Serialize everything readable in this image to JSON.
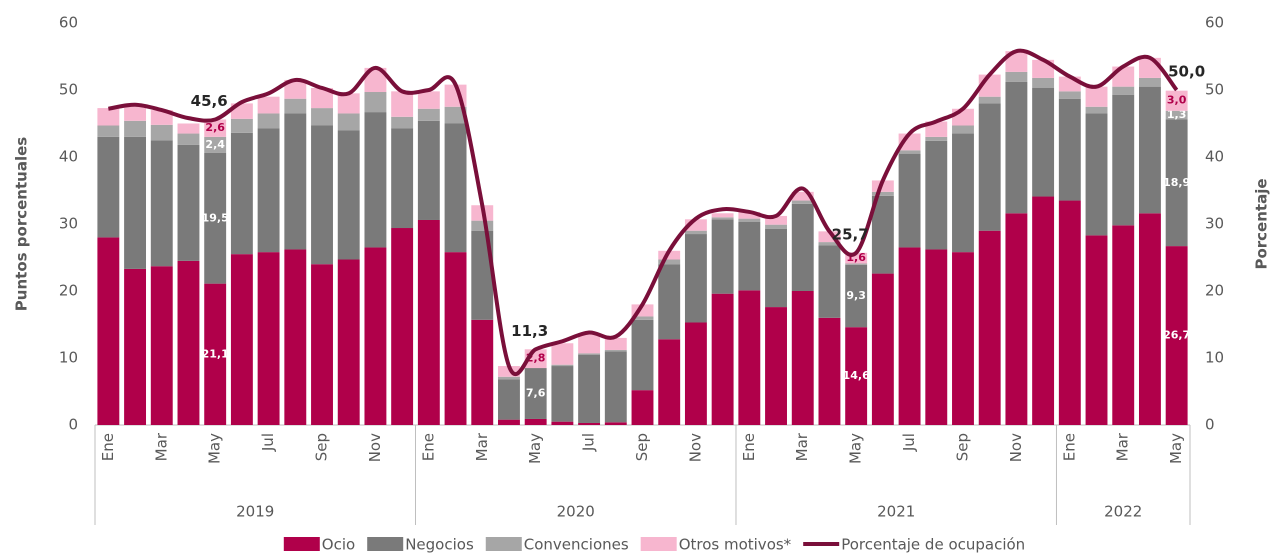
{
  "chart_data": {
    "type": "bar",
    "stacked": true,
    "ylabel": "Puntos porcentuales",
    "y2label": "Porcentaje",
    "ylim": [
      0,
      60
    ],
    "yticks": [
      0,
      10,
      20,
      30,
      40,
      50,
      60
    ],
    "y2lim": [
      0,
      60
    ],
    "y2ticks": [
      0,
      10,
      20,
      30,
      40,
      50,
      60
    ],
    "categories": [
      "Ene",
      null,
      "Mar",
      null,
      "May",
      null,
      "Jul",
      null,
      "Sep",
      null,
      "Nov",
      null,
      "Ene",
      null,
      "Mar",
      null,
      "May",
      null,
      "Jul",
      null,
      "Sep",
      null,
      "Nov",
      null,
      "Ene",
      null,
      "Mar",
      null,
      "May",
      null,
      "Jul",
      null,
      "Sep",
      null,
      "Nov",
      null,
      "Ene",
      null,
      "Mar",
      null,
      "May"
    ],
    "groups": [
      {
        "name": "2019",
        "count": 12
      },
      {
        "name": "2020",
        "count": 12
      },
      {
        "name": "2021",
        "count": 12
      },
      {
        "name": "2022",
        "count": 5
      }
    ],
    "series": [
      {
        "name": "Ocio",
        "type": "bar",
        "color": "#b0004a",
        "values": [
          28,
          23.3,
          23.7,
          24.5,
          21.1,
          25.5,
          25.8,
          26.2,
          24,
          24.7,
          26.5,
          29.4,
          30.6,
          25.8,
          15.7,
          0.8,
          0.9,
          0.5,
          0.3,
          0.4,
          5.2,
          12.8,
          15.3,
          19.6,
          20.1,
          17.6,
          20,
          16,
          14.6,
          22.6,
          26.5,
          26.2,
          25.8,
          29,
          31.6,
          34.1,
          33.5,
          28.3,
          29.8,
          31.6,
          26.7
        ],
        "value_labels": [
          null,
          null,
          null,
          null,
          "21,1",
          null,
          null,
          null,
          null,
          null,
          null,
          null,
          null,
          null,
          null,
          null,
          null,
          null,
          null,
          null,
          null,
          null,
          null,
          null,
          null,
          null,
          null,
          null,
          "14,6",
          null,
          null,
          null,
          null,
          null,
          null,
          null,
          null,
          null,
          null,
          null,
          "26,7"
        ]
      },
      {
        "name": "Negocios",
        "type": "bar",
        "color": "#7a7a7a",
        "values": [
          15,
          19.7,
          18.8,
          17.3,
          19.5,
          18.1,
          18.5,
          20.3,
          20.7,
          19.3,
          20.2,
          14.9,
          14.8,
          19.2,
          13.3,
          6,
          7.6,
          8.3,
          10.2,
          10.6,
          10.5,
          11.2,
          13.2,
          11.1,
          10.2,
          11.7,
          13,
          10.8,
          9.3,
          11.6,
          14,
          16.2,
          17.7,
          19,
          19.6,
          16.2,
          15.2,
          18.2,
          19.5,
          18.9,
          18.9
        ],
        "value_labels": [
          null,
          null,
          null,
          null,
          "19,5",
          null,
          null,
          null,
          null,
          null,
          null,
          null,
          null,
          null,
          null,
          null,
          "7,6",
          null,
          null,
          null,
          null,
          null,
          null,
          null,
          null,
          null,
          null,
          null,
          "9,3",
          null,
          null,
          null,
          null,
          null,
          null,
          null,
          null,
          null,
          null,
          null,
          "18,9"
        ]
      },
      {
        "name": "Convenciones",
        "type": "bar",
        "color": "#a6a6a6",
        "values": [
          1.7,
          2.4,
          2.3,
          1.7,
          2.4,
          2.1,
          2.2,
          2.2,
          2.6,
          2.5,
          3,
          1.7,
          1.8,
          2.5,
          1.5,
          0.4,
          0,
          0.2,
          0.2,
          0.2,
          0.5,
          0.7,
          0.5,
          0.3,
          0.5,
          0.6,
          0.5,
          0.5,
          0.2,
          0.6,
          0.5,
          0.6,
          1.2,
          1,
          1.5,
          1.5,
          1.1,
          1,
          1.2,
          1.3,
          1.3
        ],
        "value_labels": [
          null,
          null,
          null,
          null,
          "2,4",
          null,
          null,
          null,
          null,
          null,
          null,
          null,
          null,
          null,
          null,
          null,
          null,
          null,
          null,
          null,
          null,
          null,
          null,
          null,
          null,
          null,
          null,
          null,
          null,
          null,
          null,
          null,
          null,
          null,
          null,
          null,
          null,
          null,
          null,
          null,
          "1,3"
        ]
      },
      {
        "name": "Otros motivos*",
        "type": "bar",
        "color": "#f7b6cf",
        "values": [
          2.6,
          2.1,
          2.2,
          1.5,
          2.6,
          2.3,
          2.5,
          2.8,
          3,
          3,
          3.6,
          3.8,
          2.6,
          3.3,
          2.3,
          1.6,
          2.8,
          3.2,
          2.8,
          1.8,
          1.8,
          1.3,
          1.7,
          0.6,
          1,
          1.3,
          1.3,
          1.6,
          1.6,
          1.7,
          2.5,
          2.3,
          2.5,
          3.3,
          3.1,
          2.7,
          2.2,
          3,
          3,
          3,
          3
        ],
        "value_labels": [
          null,
          null,
          null,
          null,
          "2,6",
          null,
          null,
          null,
          null,
          null,
          null,
          null,
          null,
          null,
          null,
          null,
          "2,8",
          null,
          null,
          null,
          null,
          null,
          null,
          null,
          null,
          null,
          null,
          null,
          "1,6",
          null,
          null,
          null,
          null,
          null,
          null,
          null,
          null,
          null,
          null,
          null,
          "3,0"
        ]
      },
      {
        "name": "Porcentaje de ocupación",
        "type": "line",
        "axis": "y2",
        "color": "#7a0f3a",
        "values": [
          47.2,
          47.8,
          47,
          45.8,
          45.6,
          48.2,
          49.5,
          51.5,
          50.3,
          49.5,
          53.3,
          49.8,
          50,
          50.8,
          32.8,
          8.8,
          11.3,
          12.5,
          13.8,
          13.2,
          18,
          26,
          30.8,
          32.2,
          31.8,
          31.2,
          35.3,
          28.9,
          25.7,
          36.5,
          43.5,
          45.3,
          47.2,
          52.3,
          55.8,
          54.5,
          52,
          50.5,
          53.5,
          54.8,
          50.0
        ],
        "value_labels": [
          null,
          null,
          null,
          null,
          "45,6",
          null,
          null,
          null,
          null,
          null,
          null,
          null,
          null,
          null,
          null,
          null,
          "11,3",
          null,
          null,
          null,
          null,
          null,
          null,
          null,
          null,
          null,
          null,
          null,
          "25,7",
          null,
          null,
          null,
          null,
          null,
          null,
          null,
          null,
          null,
          null,
          null,
          "50,0"
        ]
      }
    ]
  }
}
